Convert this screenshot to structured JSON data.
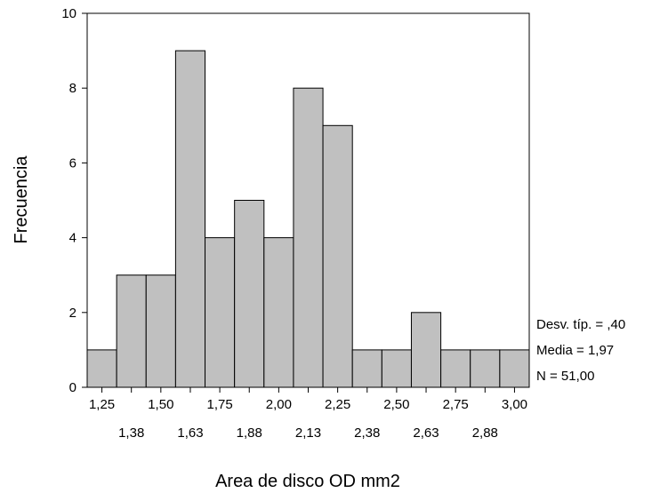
{
  "chart_data": {
    "type": "bar",
    "title": "",
    "xlabel": "Area de disco OD mm2",
    "ylabel": "Frecuencia",
    "bins": [
      {
        "center": 1.25,
        "count": 1
      },
      {
        "center": 1.38,
        "count": 3
      },
      {
        "center": 1.5,
        "count": 3
      },
      {
        "center": 1.63,
        "count": 9
      },
      {
        "center": 1.75,
        "count": 4
      },
      {
        "center": 1.88,
        "count": 5
      },
      {
        "center": 2.0,
        "count": 4
      },
      {
        "center": 2.13,
        "count": 8
      },
      {
        "center": 2.25,
        "count": 7
      },
      {
        "center": 2.38,
        "count": 1
      },
      {
        "center": 2.5,
        "count": 1
      },
      {
        "center": 2.63,
        "count": 2
      },
      {
        "center": 2.75,
        "count": 1
      },
      {
        "center": 2.88,
        "count": 1
      },
      {
        "center": 3.0,
        "count": 1
      }
    ],
    "x_tick_labels_upper": [
      "1,25",
      "1,50",
      "1,75",
      "2,00",
      "2,25",
      "2,50",
      "2,75",
      "3,00"
    ],
    "x_tick_labels_lower": [
      "1,38",
      "1,63",
      "1,88",
      "2,13",
      "2,38",
      "2,63",
      "2,88"
    ],
    "y_ticks": [
      {
        "value": 0,
        "label": "0"
      },
      {
        "value": 2,
        "label": "2"
      },
      {
        "value": 4,
        "label": "4"
      },
      {
        "value": 6,
        "label": "6"
      },
      {
        "value": 8,
        "label": "8"
      },
      {
        "value": 10,
        "label": "10"
      }
    ],
    "ylim": [
      0,
      10
    ],
    "grid": false,
    "bar_color": "#c0c0c0",
    "stats": {
      "std": "Desv. típ. = ,40",
      "mean": "Media = 1,97",
      "n": "N = 51,00"
    }
  }
}
